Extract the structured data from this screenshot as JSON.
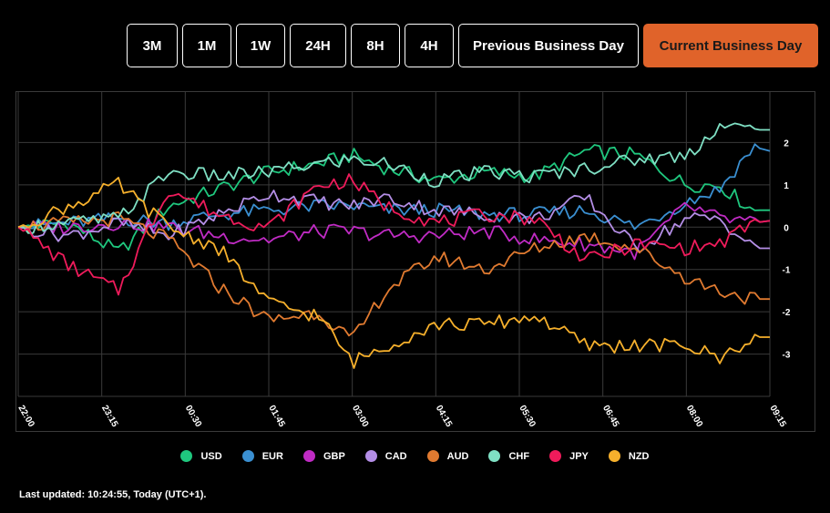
{
  "buttons": [
    {
      "label": "3M",
      "active": false
    },
    {
      "label": "1M",
      "active": false
    },
    {
      "label": "1W",
      "active": false
    },
    {
      "label": "24H",
      "active": false
    },
    {
      "label": "8H",
      "active": false
    },
    {
      "label": "4H",
      "active": false
    },
    {
      "label": "Previous Business Day",
      "active": false
    },
    {
      "label": "Current Business Day",
      "active": true
    }
  ],
  "colors": {
    "accent": "#e0632a",
    "background": "#000000",
    "grid": "#3a3a3a"
  },
  "chart_data": {
    "type": "line",
    "x_ticks": [
      "22:00",
      "23:15",
      "00:30",
      "01:45",
      "03:00",
      "04:15",
      "05:30",
      "06:45",
      "08:00",
      "09:15"
    ],
    "y_ticks": [
      2,
      1,
      0,
      -1,
      -2,
      -3
    ],
    "ylim": [
      -4,
      3
    ],
    "xlim": [
      "22:00",
      "09:15"
    ],
    "grid": true,
    "legend_position": "bottom",
    "x": [
      "22:00",
      "22:45",
      "23:30",
      "00:15",
      "01:00",
      "01:45",
      "02:30",
      "03:00",
      "03:30",
      "04:15",
      "05:00",
      "05:45",
      "06:30",
      "07:15",
      "08:00",
      "08:30",
      "09:00",
      "09:15"
    ],
    "series": [
      {
        "name": "USD",
        "color": "#1fc77e",
        "values": [
          0.0,
          0.1,
          -0.6,
          0.5,
          0.9,
          1.3,
          1.5,
          1.7,
          1.4,
          1.1,
          1.3,
          1.2,
          1.8,
          1.7,
          1.0,
          1.0,
          0.4,
          0.4
        ]
      },
      {
        "name": "EUR",
        "color": "#3a8fd1",
        "values": [
          0.0,
          0.1,
          0.2,
          0.1,
          0.3,
          0.4,
          0.5,
          0.5,
          0.4,
          0.4,
          0.3,
          0.3,
          0.4,
          0.0,
          0.6,
          0.9,
          1.9,
          1.8
        ]
      },
      {
        "name": "GBP",
        "color": "#c02bc4",
        "values": [
          0.0,
          0.0,
          0.1,
          0.0,
          -0.2,
          -0.3,
          -0.1,
          -0.1,
          -0.2,
          -0.2,
          -0.1,
          -0.3,
          -0.4,
          -0.6,
          0.5,
          0.2,
          0.1,
          0.15
        ]
      },
      {
        "name": "CAD",
        "color": "#b48ee6",
        "values": [
          0.0,
          -0.2,
          0.1,
          -0.2,
          0.3,
          0.8,
          0.6,
          0.5,
          0.7,
          0.4,
          0.3,
          0.2,
          0.7,
          -0.5,
          0.2,
          0.2,
          -0.5,
          -0.5
        ]
      },
      {
        "name": "AUD",
        "color": "#e07a30",
        "values": [
          0.0,
          0.1,
          0.2,
          -0.3,
          -1.4,
          -2.2,
          -2.0,
          -2.7,
          -1.5,
          -0.7,
          -1.0,
          -0.5,
          -0.2,
          -0.5,
          -1.2,
          -1.5,
          -1.7,
          -1.7
        ]
      },
      {
        "name": "CHF",
        "color": "#7fe0c4",
        "values": [
          0.0,
          0.1,
          0.2,
          1.3,
          1.2,
          1.3,
          1.5,
          1.6,
          1.5,
          1.1,
          1.3,
          1.2,
          1.4,
          1.6,
          1.7,
          2.4,
          2.3,
          2.3
        ]
      },
      {
        "name": "JPY",
        "color": "#ef1b5b",
        "values": [
          0.0,
          -0.9,
          -1.5,
          0.9,
          0.3,
          0.0,
          1.0,
          1.1,
          0.5,
          0.1,
          0.3,
          0.2,
          -0.8,
          -0.4,
          -0.5,
          -0.4,
          0.1,
          0.15
        ]
      },
      {
        "name": "NZD",
        "color": "#f6b02c",
        "values": [
          0.0,
          0.5,
          1.0,
          0.0,
          -0.5,
          -1.8,
          -2.1,
          -3.2,
          -2.8,
          -2.3,
          -2.3,
          -2.1,
          -2.8,
          -2.8,
          -2.8,
          -3.1,
          -2.6,
          -2.6
        ]
      }
    ]
  },
  "footer": {
    "text": "Last updated: 10:24:55, Today (UTC+1)."
  }
}
